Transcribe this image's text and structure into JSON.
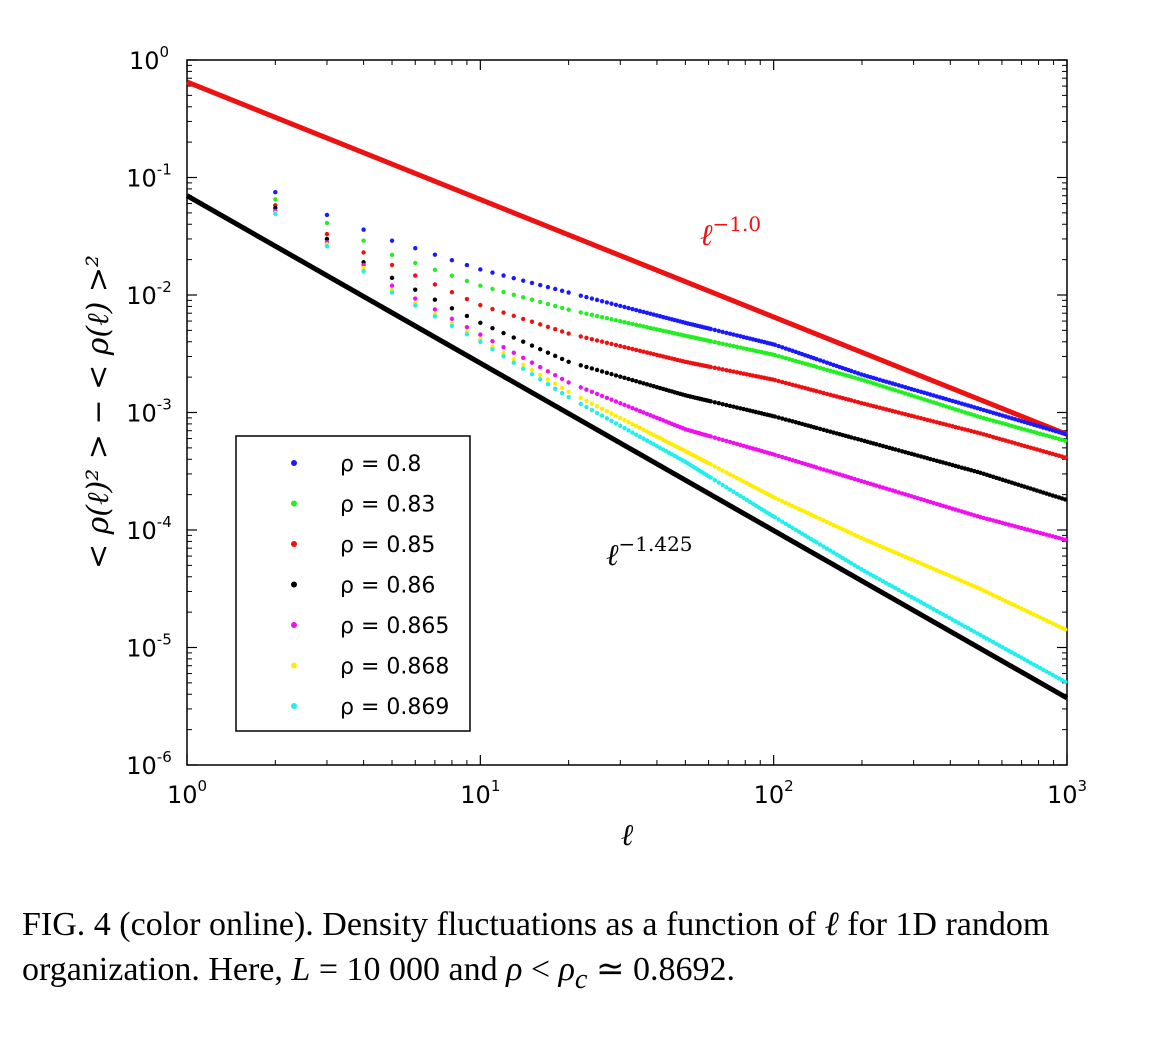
{
  "chart_data": {
    "type": "scatter",
    "xscale": "log",
    "yscale": "log",
    "xlim": [
      1,
      1000
    ],
    "ylim": [
      1e-06,
      1
    ],
    "xlabel": "ℓ",
    "ylabel": "< ρ(ℓ)² > − < ρ(ℓ) >²",
    "x_ticks": [
      {
        "base": "10",
        "exp": "0",
        "value": 1
      },
      {
        "base": "10",
        "exp": "1",
        "value": 10
      },
      {
        "base": "10",
        "exp": "2",
        "value": 100
      },
      {
        "base": "10",
        "exp": "3",
        "value": 1000
      }
    ],
    "y_ticks": [
      {
        "base": "10",
        "exp": "0",
        "value": 1
      },
      {
        "base": "10",
        "exp": "-1",
        "value": 0.1
      },
      {
        "base": "10",
        "exp": "-2",
        "value": 0.01
      },
      {
        "base": "10",
        "exp": "-3",
        "value": 0.001
      },
      {
        "base": "10",
        "exp": "-4",
        "value": 0.0001
      },
      {
        "base": "10",
        "exp": "-5",
        "value": 1e-05
      },
      {
        "base": "10",
        "exp": "-6",
        "value": 1e-06
      }
    ],
    "legend_position": "lower-left",
    "series": [
      {
        "name": "ρ = 0.8",
        "color": "#1a1aff",
        "points": [
          [
            2,
            0.075
          ],
          [
            3,
            0.048
          ],
          [
            4,
            0.036
          ],
          [
            5,
            0.029
          ],
          [
            10,
            0.0165
          ],
          [
            20,
            0.0105
          ],
          [
            50,
            0.0058
          ],
          [
            100,
            0.0038
          ],
          [
            200,
            0.0021
          ],
          [
            500,
            0.00108
          ],
          [
            1000,
            0.00065
          ]
        ]
      },
      {
        "name": "ρ = 0.83",
        "color": "#22ee22",
        "points": [
          [
            2,
            0.065
          ],
          [
            3,
            0.041
          ],
          [
            4,
            0.029
          ],
          [
            5,
            0.022
          ],
          [
            10,
            0.012
          ],
          [
            20,
            0.0075
          ],
          [
            50,
            0.0045
          ],
          [
            100,
            0.0031
          ],
          [
            200,
            0.0019
          ],
          [
            500,
            0.00092
          ],
          [
            1000,
            0.00057
          ]
        ]
      },
      {
        "name": "ρ = 0.85",
        "color": "#ee1111",
        "points": [
          [
            2,
            0.058
          ],
          [
            3,
            0.033
          ],
          [
            4,
            0.023
          ],
          [
            5,
            0.018
          ],
          [
            10,
            0.0082
          ],
          [
            20,
            0.0047
          ],
          [
            50,
            0.0027
          ],
          [
            100,
            0.0019
          ],
          [
            200,
            0.0012
          ],
          [
            500,
            0.00067
          ],
          [
            1000,
            0.00041
          ]
        ]
      },
      {
        "name": "ρ = 0.86",
        "color": "#000000",
        "points": [
          [
            2,
            0.055
          ],
          [
            3,
            0.03
          ],
          [
            4,
            0.019
          ],
          [
            5,
            0.014
          ],
          [
            10,
            0.0058
          ],
          [
            20,
            0.0027
          ],
          [
            50,
            0.0014
          ],
          [
            100,
            0.00093
          ],
          [
            200,
            0.00058
          ],
          [
            500,
            0.00031
          ],
          [
            1000,
            0.00018
          ]
        ]
      },
      {
        "name": "ρ = 0.865",
        "color": "#ee11ee",
        "points": [
          [
            2,
            0.052
          ],
          [
            3,
            0.028
          ],
          [
            4,
            0.018
          ],
          [
            5,
            0.012
          ],
          [
            10,
            0.0046
          ],
          [
            20,
            0.0018
          ],
          [
            50,
            0.00072
          ],
          [
            100,
            0.00044
          ],
          [
            200,
            0.00026
          ],
          [
            500,
            0.00013
          ],
          [
            1000,
            8.2e-05
          ]
        ]
      },
      {
        "name": "ρ = 0.868",
        "color": "#ffee00",
        "points": [
          [
            2,
            0.05
          ],
          [
            3,
            0.027
          ],
          [
            4,
            0.017
          ],
          [
            5,
            0.011
          ],
          [
            10,
            0.0042
          ],
          [
            20,
            0.0015
          ],
          [
            50,
            0.00047
          ],
          [
            100,
            0.00019
          ],
          [
            200,
            8.5e-05
          ],
          [
            500,
            3.2e-05
          ],
          [
            1000,
            1.4e-05
          ]
        ]
      },
      {
        "name": "ρ = 0.869",
        "color": "#22eeee",
        "points": [
          [
            2,
            0.049
          ],
          [
            3,
            0.026
          ],
          [
            4,
            0.016
          ],
          [
            5,
            0.0105
          ],
          [
            10,
            0.004
          ],
          [
            20,
            0.00135
          ],
          [
            50,
            0.00038
          ],
          [
            100,
            0.00013
          ],
          [
            200,
            4.6e-05
          ],
          [
            500,
            1.3e-05
          ],
          [
            1000,
            5e-06
          ]
        ]
      }
    ],
    "reference_lines": [
      {
        "label_base": "ℓ",
        "label_exp": "−1.0",
        "exponent": -1.0,
        "prefactor": 0.65,
        "color": "#ee1111"
      },
      {
        "label_base": "ℓ",
        "label_exp": "−1.425",
        "exponent": -1.425,
        "prefactor": 0.07,
        "color": "#000000"
      }
    ]
  },
  "caption": {
    "part1": "FIG. 4 (color online).    Density fluctuations as a function of ",
    "ell": "ℓ",
    "part2": " for 1D random organization. Here, ",
    "L": "L",
    "part3": " = 10 000 and ",
    "rho": "ρ",
    "part4": " < ",
    "rhoc": "ρ",
    "sub_c": "c",
    "part5": " ≃ 0.8692."
  }
}
